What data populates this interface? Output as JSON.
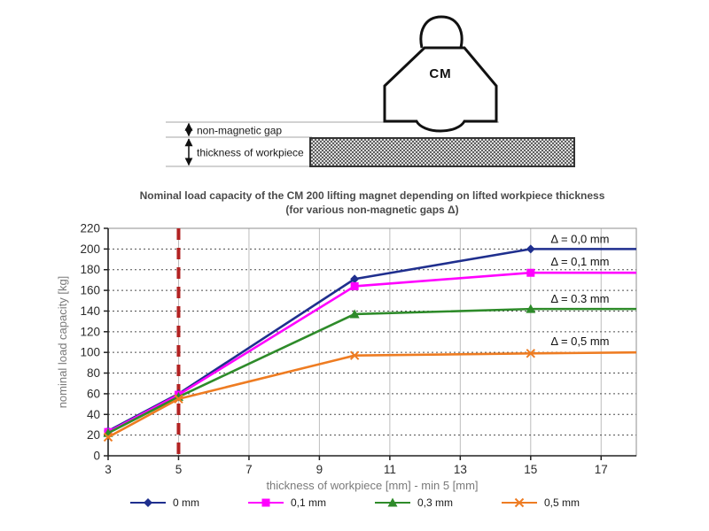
{
  "diagram": {
    "magnet_label": "CM",
    "gap_label": "non-magnetic gap",
    "workpiece_label": "thickness of workpiece"
  },
  "chart": {
    "title_line1": "Nominal load capacity of the CM 200 lifting magnet depending on lifted workpiece thickness",
    "title_line2": "(for various non-magnetic gaps Δ)"
  },
  "chart_data": {
    "type": "line",
    "title": "Nominal load capacity of the CM 200 lifting magnet depending on lifted workpiece thickness (for various non-magnetic gaps Δ)",
    "xlabel": "thickness of workpiece [mm] - min 5 [mm]",
    "ylabel": "nominal load capacity [kg]",
    "xlim": [
      3,
      18
    ],
    "ylim": [
      0,
      220
    ],
    "xticks": [
      3,
      5,
      7,
      9,
      11,
      13,
      15,
      17
    ],
    "yticks": [
      0,
      20,
      40,
      60,
      80,
      100,
      120,
      140,
      160,
      180,
      200,
      220
    ],
    "grid": {
      "horizontal": "dashed",
      "vertical": "solid"
    },
    "legend_position": "bottom",
    "reference_line": {
      "x": 5,
      "color": "#b22222",
      "style": "dashed"
    },
    "series": [
      {
        "name": "0 mm",
        "color": "#1f2f8e",
        "marker": "diamond",
        "x": [
          3,
          5,
          10,
          15,
          18
        ],
        "y": [
          24,
          60,
          171,
          200,
          200
        ],
        "marker_x": [
          3,
          5,
          10,
          15
        ],
        "annotation": {
          "text": "Δ = 0,0 mm",
          "x": 16.4,
          "y": 206
        }
      },
      {
        "name": "0,1 mm",
        "color": "#ff00ff",
        "marker": "square",
        "x": [
          3,
          5,
          10,
          15,
          18
        ],
        "y": [
          23,
          59,
          164,
          177,
          177
        ],
        "marker_x": [
          3,
          5,
          10,
          15
        ],
        "annotation": {
          "text": "Δ = 0,1 mm",
          "x": 16.4,
          "y": 184
        }
      },
      {
        "name": "0,3 mm",
        "color": "#2e8b2a",
        "marker": "triangle",
        "x": [
          3,
          5,
          10,
          15,
          18
        ],
        "y": [
          22,
          57,
          137,
          142,
          142
        ],
        "marker_x": [
          3,
          5,
          10,
          15
        ],
        "annotation": {
          "text": "Δ = 0.3 mm",
          "x": 16.4,
          "y": 148
        }
      },
      {
        "name": "0,5 mm",
        "color": "#ee7c22",
        "marker": "x",
        "x": [
          3,
          5,
          10,
          15,
          18
        ],
        "y": [
          18,
          55,
          97,
          99,
          100
        ],
        "marker_x": [
          3,
          5,
          10,
          15
        ],
        "annotation": {
          "text": "Δ = 0,5 mm",
          "x": 16.4,
          "y": 107
        }
      }
    ]
  }
}
